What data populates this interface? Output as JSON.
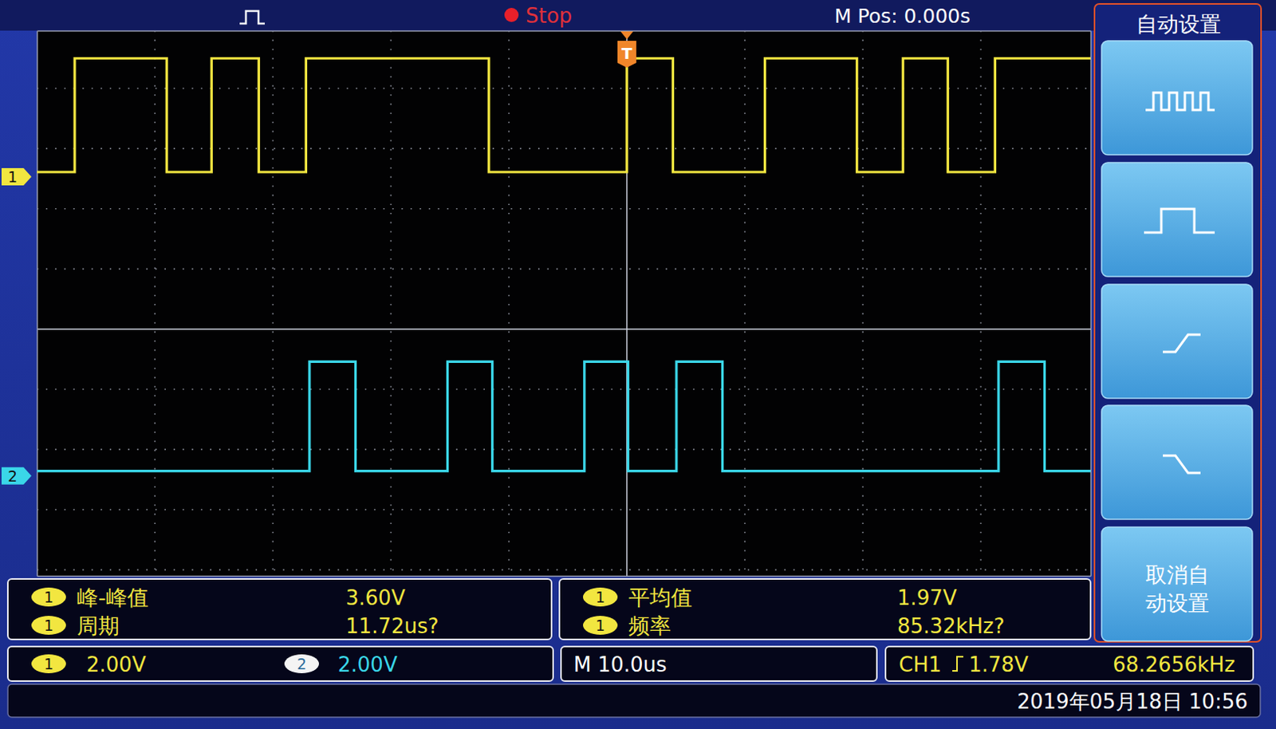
{
  "chart_data": {
    "type": "line",
    "xlim": [
      -50,
      39.3
    ],
    "xticks": [
      -40,
      -30,
      -20,
      -10,
      0,
      10,
      20,
      30
    ],
    "ylim": [
      -4.1,
      4.96
    ],
    "yticks": [
      -4,
      -3,
      -2,
      -1,
      0,
      1,
      2,
      3,
      4
    ],
    "grid": true,
    "tick_labels": false,
    "series": [
      {
        "name": "1",
        "color": "#f2e640",
        "x": [
          -50,
          -46.8,
          -46.8,
          -39.0,
          -39.0,
          -35.2,
          -35.2,
          -31.2,
          -31.2,
          -27.2,
          -27.2,
          -11.7,
          -11.7,
          0,
          0,
          3.9,
          3.9,
          11.7,
          11.7,
          19.5,
          19.5,
          23.4,
          23.4,
          27.2,
          27.2,
          31.2,
          31.2,
          39.3
        ],
        "values": [
          2.61,
          2.61,
          4.5,
          4.5,
          2.61,
          2.61,
          4.5,
          4.5,
          2.61,
          2.61,
          4.5,
          4.5,
          2.61,
          2.61,
          4.5,
          4.5,
          2.61,
          2.61,
          4.5,
          4.5,
          2.61,
          2.61,
          4.5,
          4.5,
          2.61,
          2.61,
          4.5,
          4.5
        ]
      },
      {
        "name": "2",
        "color": "#3ad6e8",
        "x": [
          -50,
          -26.9,
          -26.9,
          -23.0,
          -23.0,
          -15.2,
          -15.2,
          -11.4,
          -11.4,
          -3.6,
          -3.6,
          0.1,
          0.1,
          4.2,
          4.2,
          8.1,
          8.1,
          31.5,
          31.5,
          35.4,
          35.4,
          39.3
        ],
        "values": [
          -2.36,
          -2.36,
          -0.54,
          -0.54,
          -2.36,
          -2.36,
          -0.54,
          -0.54,
          -2.36,
          -2.36,
          -0.54,
          -0.54,
          -2.36,
          -2.36,
          -0.54,
          -0.54,
          -2.36,
          -2.36,
          -0.54,
          -0.54,
          -2.36,
          -2.36
        ]
      }
    ]
  },
  "top_bar": {
    "status": "Stop",
    "m_pos": "M Pos: 0.000s",
    "trigger_marker": "T"
  },
  "measurements": [
    {
      "channel": "1",
      "name": "峰-峰值",
      "value": "3.60V"
    },
    {
      "channel": "1",
      "name": "周期",
      "value": "11.72us?"
    },
    {
      "channel": "1",
      "name": "平均值",
      "value": "1.97V"
    },
    {
      "channel": "1",
      "name": "频率",
      "value": "85.32kHz?"
    }
  ],
  "status_bar": {
    "channels": [
      {
        "channel": "1",
        "scale": "2.00V"
      },
      {
        "channel": "2",
        "scale": "2.00V"
      }
    ],
    "timebase": "M 10.0us",
    "trigger": {
      "source": "CH1",
      "level": "1.78V"
    },
    "frequency": "68.2656kHz"
  },
  "date": "2019年05月18日 10:56",
  "menu": {
    "title": "自动设置",
    "cancel_button": [
      "取消自",
      "动设置"
    ]
  }
}
